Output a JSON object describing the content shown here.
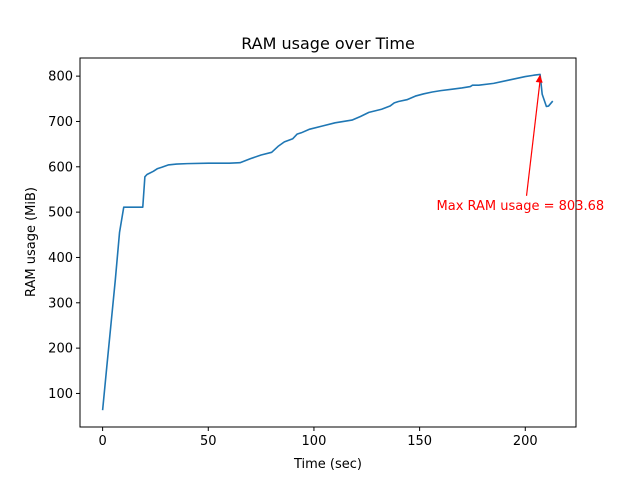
{
  "chart_data": {
    "type": "line",
    "title": "RAM usage over Time",
    "xlabel": "Time (sec)",
    "ylabel": "RAM usage (MiB)",
    "xlim": [
      -10.7,
      224
    ],
    "ylim": [
      26,
      840
    ],
    "xticks": [
      0,
      50,
      100,
      150,
      200
    ],
    "yticks": [
      100,
      200,
      300,
      400,
      500,
      600,
      700,
      800
    ],
    "grid": false,
    "series": [
      {
        "color": "#1f77b4",
        "x": [
          0,
          2,
          4,
          6,
          8,
          10,
          12,
          15,
          19,
          20,
          21,
          24,
          26,
          28,
          31,
          35,
          40,
          50,
          60,
          65,
          70,
          75,
          80,
          83,
          86,
          90,
          92,
          94,
          98,
          104,
          110,
          118,
          122,
          126,
          132,
          136,
          138,
          140,
          144,
          148,
          152,
          156,
          160,
          165,
          170,
          174,
          175,
          178,
          185,
          192,
          200,
          204,
          207,
          208,
          210,
          211,
          213
        ],
        "y": [
          63,
          160,
          255,
          350,
          455,
          511,
          511,
          511,
          511,
          578,
          583,
          590,
          596,
          599,
          604,
          606,
          607,
          608,
          608,
          609,
          618,
          626,
          632,
          645,
          655,
          662,
          672,
          675,
          683,
          690,
          697,
          703,
          711,
          720,
          727,
          734,
          741,
          744,
          748,
          756,
          761,
          765,
          768,
          771,
          774,
          777,
          780,
          780,
          784,
          791,
          799,
          802,
          803.68,
          760,
          733,
          734,
          745
        ]
      }
    ],
    "annotations": [
      {
        "text": "Max RAM usage = 803.68",
        "color": "#ff0000",
        "arrow_x": 207,
        "arrow_y": 803.68,
        "text_x": 158,
        "text_y": 505
      }
    ]
  }
}
